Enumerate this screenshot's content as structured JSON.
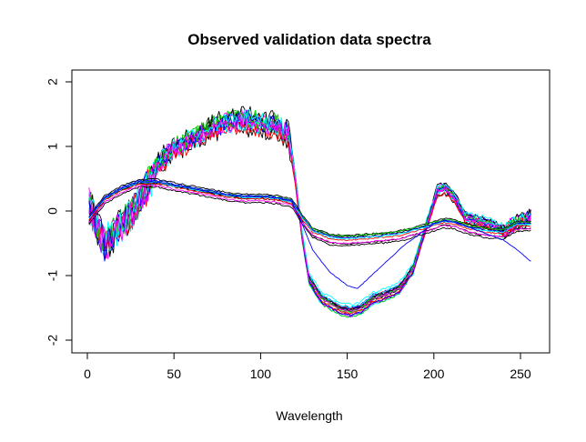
{
  "chart_data": {
    "type": "line",
    "title": "Observed validation data spectra",
    "xlabel": "Wavelength",
    "ylabel": "",
    "xlim": [
      0,
      256
    ],
    "ylim": [
      -2,
      2
    ],
    "x_ticks": [
      0,
      50,
      100,
      150,
      200,
      250
    ],
    "y_ticks": [
      -2,
      -1,
      0,
      1,
      2
    ],
    "grid": false,
    "legend": "none",
    "x_sampling": {
      "start": 1,
      "end": 256,
      "step": 1
    },
    "colors": [
      "#000000",
      "#ff0000",
      "#00cd00",
      "#0000ff",
      "#00ffff",
      "#ff00ff",
      "#ffff00",
      "#bebebe"
    ],
    "templates": {
      "high": [
        [
          1,
          0.1
        ],
        [
          10,
          -0.55
        ],
        [
          20,
          -0.2
        ],
        [
          30,
          0.1
        ],
        [
          40,
          0.7
        ],
        [
          50,
          0.95
        ],
        [
          60,
          1.1
        ],
        [
          70,
          1.25
        ],
        [
          80,
          1.35
        ],
        [
          90,
          1.4
        ],
        [
          100,
          1.35
        ],
        [
          110,
          1.3
        ],
        [
          116,
          1.2
        ],
        [
          120,
          0.5
        ],
        [
          124,
          -0.4
        ],
        [
          128,
          -1.05
        ],
        [
          135,
          -1.35
        ],
        [
          145,
          -1.5
        ],
        [
          152,
          -1.55
        ],
        [
          158,
          -1.5
        ],
        [
          165,
          -1.35
        ],
        [
          172,
          -1.3
        ],
        [
          180,
          -1.2
        ],
        [
          188,
          -0.9
        ],
        [
          196,
          -0.2
        ],
        [
          202,
          0.3
        ],
        [
          206,
          0.35
        ],
        [
          212,
          0.2
        ],
        [
          218,
          -0.1
        ],
        [
          225,
          -0.15
        ],
        [
          232,
          -0.2
        ],
        [
          240,
          -0.3
        ],
        [
          247,
          -0.2
        ],
        [
          252,
          -0.15
        ],
        [
          256,
          -0.1
        ]
      ],
      "mid": [
        [
          1,
          -0.1
        ],
        [
          10,
          0.2
        ],
        [
          20,
          0.35
        ],
        [
          30,
          0.45
        ],
        [
          40,
          0.45
        ],
        [
          50,
          0.4
        ],
        [
          60,
          0.35
        ],
        [
          70,
          0.3
        ],
        [
          80,
          0.25
        ],
        [
          90,
          0.22
        ],
        [
          100,
          0.22
        ],
        [
          110,
          0.2
        ],
        [
          118,
          0.15
        ],
        [
          124,
          -0.1
        ],
        [
          130,
          -0.3
        ],
        [
          140,
          -0.4
        ],
        [
          150,
          -0.42
        ],
        [
          160,
          -0.4
        ],
        [
          170,
          -0.38
        ],
        [
          180,
          -0.35
        ],
        [
          190,
          -0.28
        ],
        [
          200,
          -0.2
        ],
        [
          206,
          -0.15
        ],
        [
          212,
          -0.17
        ],
        [
          220,
          -0.25
        ],
        [
          230,
          -0.3
        ],
        [
          240,
          -0.32
        ],
        [
          248,
          -0.2
        ],
        [
          256,
          -0.2
        ]
      ],
      "blue_outlier": [
        [
          1,
          -0.1
        ],
        [
          10,
          0.2
        ],
        [
          20,
          0.35
        ],
        [
          30,
          0.45
        ],
        [
          40,
          0.45
        ],
        [
          50,
          0.4
        ],
        [
          60,
          0.35
        ],
        [
          70,
          0.3
        ],
        [
          80,
          0.25
        ],
        [
          90,
          0.22
        ],
        [
          100,
          0.22
        ],
        [
          110,
          0.2
        ],
        [
          118,
          0.15
        ],
        [
          124,
          -0.2
        ],
        [
          130,
          -0.6
        ],
        [
          140,
          -0.95
        ],
        [
          150,
          -1.15
        ],
        [
          156,
          -1.2
        ],
        [
          162,
          -1.05
        ],
        [
          172,
          -0.8
        ],
        [
          182,
          -0.55
        ],
        [
          192,
          -0.35
        ],
        [
          200,
          -0.2
        ],
        [
          206,
          -0.15
        ],
        [
          212,
          -0.18
        ],
        [
          220,
          -0.25
        ],
        [
          230,
          -0.35
        ],
        [
          240,
          -0.45
        ],
        [
          248,
          -0.6
        ],
        [
          256,
          -0.78
        ]
      ]
    },
    "series": [
      {
        "color": "#000000",
        "template": "high",
        "offset": 0.02,
        "scale": 1.0,
        "noise": 0.14
      },
      {
        "color": "#ff0000",
        "template": "high",
        "offset": -0.03,
        "scale": 1.02,
        "noise": 0.12
      },
      {
        "color": "#00cd00",
        "template": "high",
        "offset": 0.04,
        "scale": 1.04,
        "noise": 0.13
      },
      {
        "color": "#0000ff",
        "template": "high",
        "offset": 0.0,
        "scale": 0.98,
        "noise": 0.12
      },
      {
        "color": "#00ffff",
        "template": "high",
        "offset": -0.05,
        "scale": 1.03,
        "noise": 0.15
      },
      {
        "color": "#ff00ff",
        "template": "high",
        "offset": 0.06,
        "scale": 1.01,
        "noise": 0.12
      },
      {
        "color": "#000000",
        "template": "high",
        "offset": -0.06,
        "scale": 0.96,
        "noise": 0.14
      },
      {
        "color": "#ff0000",
        "template": "high",
        "offset": 0.03,
        "scale": 0.99,
        "noise": 0.12
      },
      {
        "color": "#00cd00",
        "template": "high",
        "offset": -0.02,
        "scale": 1.05,
        "noise": 0.13
      },
      {
        "color": "#0000ff",
        "template": "high",
        "offset": 0.05,
        "scale": 1.0,
        "noise": 0.13
      },
      {
        "color": "#00ffff",
        "template": "high",
        "offset": 0.01,
        "scale": 0.97,
        "noise": 0.14
      },
      {
        "color": "#ff00ff",
        "template": "high",
        "offset": -0.04,
        "scale": 1.02,
        "noise": 0.12
      },
      {
        "color": "#000000",
        "template": "high",
        "offset": 0.07,
        "scale": 1.03,
        "noise": 0.13
      },
      {
        "color": "#ff0000",
        "template": "high",
        "offset": -0.07,
        "scale": 0.98,
        "noise": 0.12
      },
      {
        "color": "#00cd00",
        "template": "high",
        "offset": 0.02,
        "scale": 1.01,
        "noise": 0.14
      },
      {
        "color": "#0000ff",
        "template": "high",
        "offset": -0.01,
        "scale": 1.04,
        "noise": 0.12
      },
      {
        "color": "#00ffff",
        "template": "high",
        "offset": 0.08,
        "scale": 0.99,
        "noise": 0.13
      },
      {
        "color": "#ff00ff",
        "template": "high",
        "offset": 0.0,
        "scale": 1.0,
        "noise": 0.15
      },
      {
        "color": "#000000",
        "template": "mid",
        "offset": 0.04,
        "scale": 1.0,
        "noise": 0.012
      },
      {
        "color": "#000000",
        "template": "mid",
        "offset": -0.05,
        "scale": 1.1,
        "noise": 0.012
      },
      {
        "color": "#000000",
        "template": "mid",
        "offset": 0.0,
        "scale": 0.95,
        "noise": 0.012
      },
      {
        "color": "#000000",
        "template": "mid",
        "offset": -0.1,
        "scale": 1.05,
        "noise": 0.012
      },
      {
        "color": "#ff0000",
        "template": "mid",
        "offset": -0.03,
        "scale": 1.0,
        "noise": 0.012
      },
      {
        "color": "#00cd00",
        "template": "mid",
        "offset": 0.02,
        "scale": 0.97,
        "noise": 0.012
      },
      {
        "color": "#0000ff",
        "template": "mid",
        "offset": 0.01,
        "scale": 1.02,
        "noise": 0.012
      },
      {
        "color": "#00ffff",
        "template": "mid",
        "offset": -0.01,
        "scale": 1.0,
        "noise": 0.012
      },
      {
        "color": "#ff00ff",
        "template": "mid",
        "offset": -0.07,
        "scale": 1.03,
        "noise": 0.012
      },
      {
        "color": "#0000ff",
        "template": "blue_outlier",
        "offset": 0.0,
        "scale": 1.0,
        "noise": 0.005
      }
    ]
  }
}
